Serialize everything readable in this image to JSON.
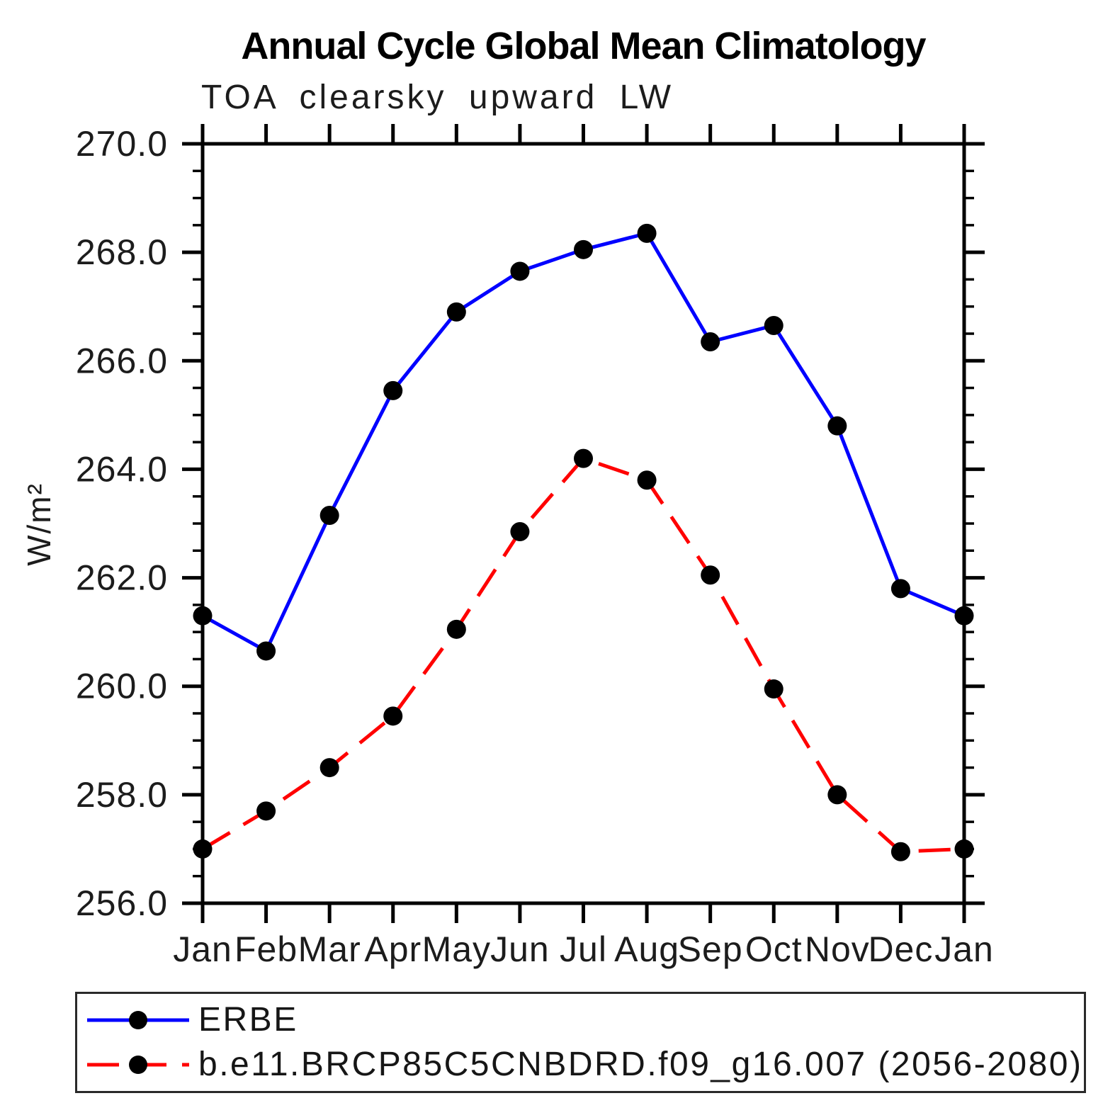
{
  "title": "Annual Cycle Global Mean Climatology",
  "subtitle": "TOA clearsky upward LW",
  "y_axis_label": "W/m²",
  "legend": {
    "entries": [
      {
        "label": "ERBE",
        "color": "#0000ff",
        "line_style": "solid",
        "marker_color": "#000000"
      },
      {
        "label": "b.e11.BRCP85C5CNBDRD.f09_g16.007 (2056-2080)",
        "color": "#ff0000",
        "line_style": "dashed",
        "marker_color": "#000000"
      }
    ]
  },
  "colors": {
    "background": "#ffffff",
    "axis": "#000000",
    "tick_label": "#1c1c1c",
    "series_erbe": "#0000ff",
    "series_model": "#ff0000",
    "marker": "#000000"
  },
  "chart_data": {
    "type": "line",
    "title": "Annual Cycle Global Mean Climatology",
    "subtitle": "TOA clearsky upward LW",
    "xlabel": "",
    "ylabel": "W/m²",
    "categories": [
      "Jan",
      "Feb",
      "Mar",
      "Apr",
      "May",
      "Jun",
      "Jul",
      "Aug",
      "Sep",
      "Oct",
      "Nov",
      "Dec",
      "Jan"
    ],
    "ylim": [
      256.0,
      270.0
    ],
    "y_major_tick_step": 2.0,
    "y_minor_tick_step": 0.5,
    "y_tick_labels": [
      "256.0",
      "258.0",
      "260.0",
      "262.0",
      "264.0",
      "266.0",
      "268.0",
      "270.0"
    ],
    "grid": false,
    "legend_position": "bottom-left-box",
    "series": [
      {
        "name": "ERBE",
        "color": "#0000ff",
        "line_style": "solid",
        "marker": "filled-circle",
        "marker_color": "#000000",
        "values": [
          261.3,
          260.65,
          263.15,
          265.45,
          266.9,
          267.65,
          268.05,
          268.35,
          266.35,
          266.65,
          264.8,
          261.8,
          261.3
        ]
      },
      {
        "name": "b.e11.BRCP85C5CNBDRD.f09_g16.007 (2056-2080)",
        "color": "#ff0000",
        "line_style": "dashed",
        "marker": "filled-circle",
        "marker_color": "#000000",
        "values": [
          257.0,
          257.7,
          258.5,
          259.45,
          261.05,
          262.85,
          264.2,
          263.8,
          262.05,
          259.95,
          258.0,
          256.95,
          257.0
        ]
      }
    ]
  }
}
